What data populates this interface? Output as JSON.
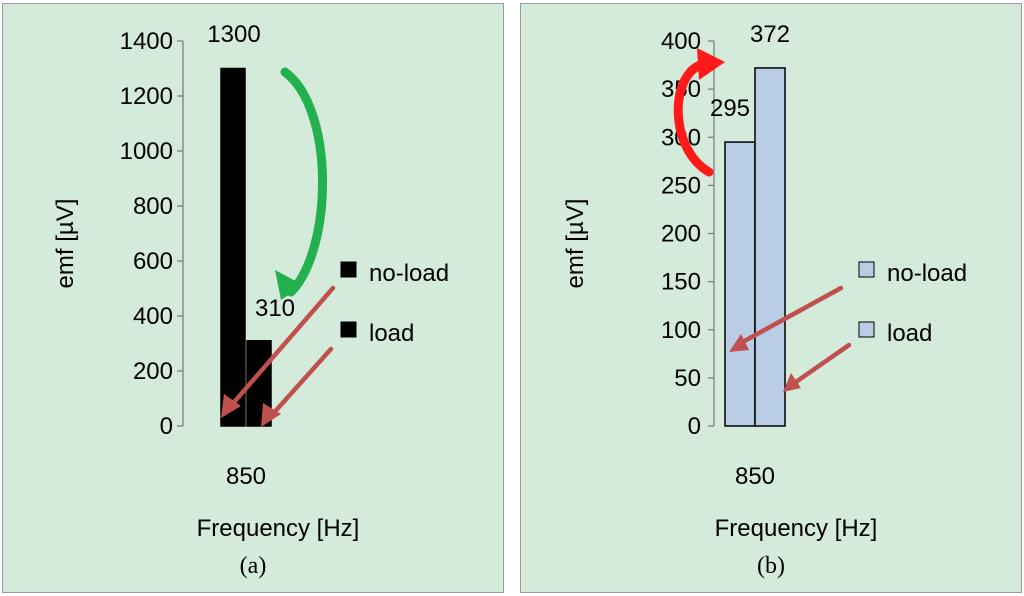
{
  "chart_data": [
    {
      "type": "bar",
      "panel_label": "(a)",
      "categories": [
        "850"
      ],
      "series": [
        {
          "name": "no-load",
          "values": [
            1300
          ]
        },
        {
          "name": "load",
          "values": [
            310
          ]
        }
      ],
      "data_labels": [
        "1300",
        "310"
      ],
      "xlabel": "Frequency [Hz]",
      "ylabel": "emf [µV]",
      "ylim": [
        0,
        1400
      ],
      "yticks": [
        0,
        200,
        400,
        600,
        800,
        1000,
        1200,
        1400
      ],
      "grid": false,
      "legend_position": "right",
      "colors": {
        "no-load": "#000000",
        "load": "#000000",
        "bar_stroke": "#000000",
        "curved_arrow": "#22b14c",
        "pointer_arrows": "#c0504d"
      }
    },
    {
      "type": "bar",
      "panel_label": "(b)",
      "categories": [
        "850"
      ],
      "series": [
        {
          "name": "no-load",
          "values": [
            295
          ]
        },
        {
          "name": "load",
          "values": [
            372
          ]
        }
      ],
      "data_labels": [
        "295",
        "372"
      ],
      "xlabel": "Frequency [Hz]",
      "ylabel": "emf [µV]",
      "ylim": [
        0,
        400
      ],
      "yticks": [
        0,
        50,
        100,
        150,
        200,
        250,
        300,
        350,
        400
      ],
      "grid": false,
      "legend_position": "right",
      "colors": {
        "no-load": "#b9cde5",
        "load": "#b9cde5",
        "bar_stroke": "#000000",
        "curved_arrow": "#ff1a1a",
        "pointer_arrows": "#c0504d"
      }
    }
  ]
}
